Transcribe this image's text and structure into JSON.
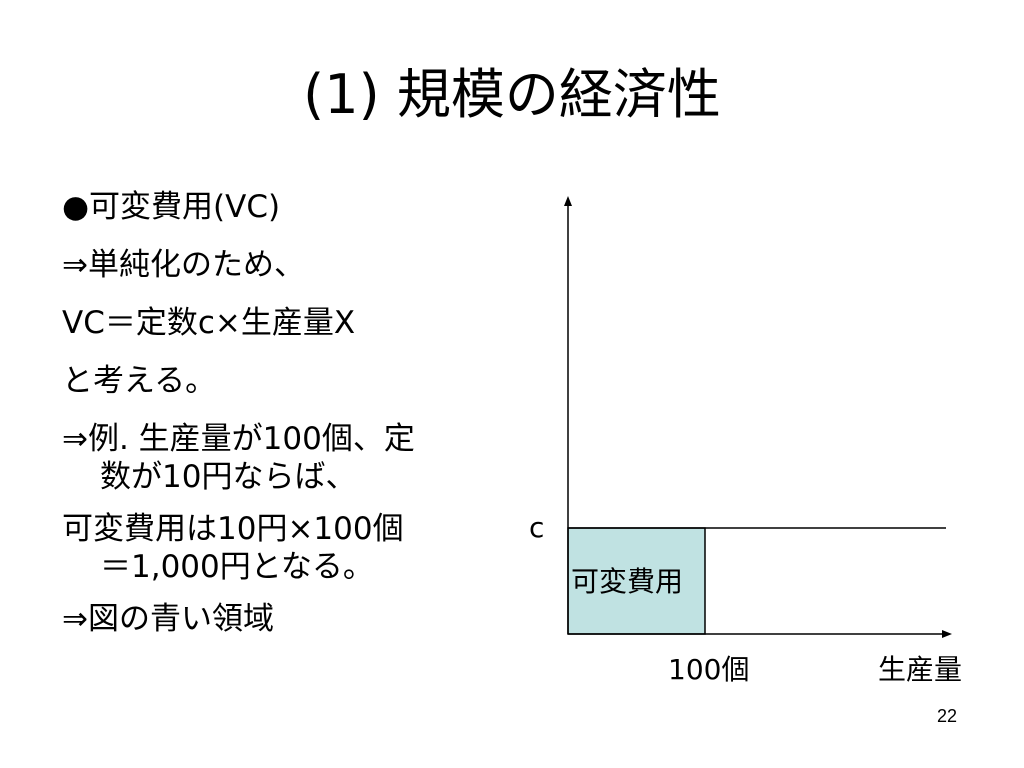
{
  "slide": {
    "title": "(1) 規模の経済性",
    "page_number": "22"
  },
  "bullets": [
    {
      "line1": "●可変費用(VC)"
    },
    {
      "line1": "⇒単純化のため、"
    },
    {
      "line1": "VC＝定数c×生産量X"
    },
    {
      "line1": "と考える。"
    },
    {
      "line1": "⇒例. 生産量が100個、定",
      "line2": "数が10円ならば、"
    },
    {
      "line1": "可変費用は10円×100個",
      "line2": "＝1,000円となる。"
    },
    {
      "line1": "⇒図の青い領域"
    }
  ],
  "diagram": {
    "y_label": "c",
    "area_label": "可変費用",
    "x_tick_label": "100個",
    "x_axis_label": "生産量",
    "area_color": "#c0e2e2",
    "line_color": "#000000"
  }
}
